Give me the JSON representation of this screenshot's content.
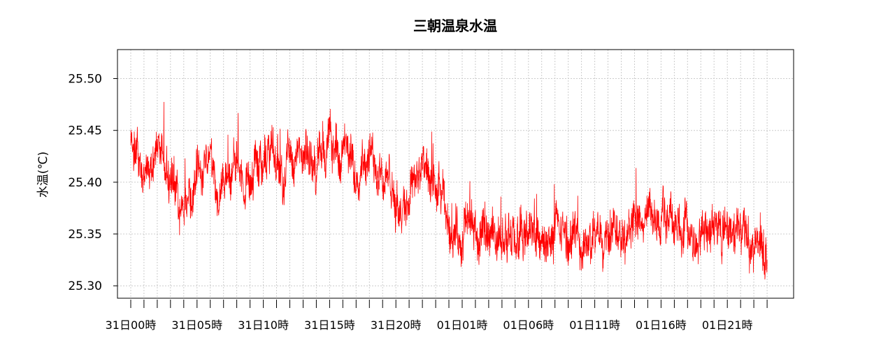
{
  "chart_data": {
    "type": "line",
    "title": "三朝温泉水温",
    "xlabel": "",
    "ylabel": "水温(℃)",
    "ylim": [
      25.288,
      25.528
    ],
    "y_ticks": [
      25.3,
      25.35,
      25.4,
      25.45,
      25.5
    ],
    "y_tick_labels": [
      "25.30",
      "25.35",
      "25.40",
      "25.45",
      "25.50"
    ],
    "x_range_hours": [
      -1.0,
      50.0
    ],
    "x_major_ticks": [
      {
        "hour": 0,
        "label": "31日00時"
      },
      {
        "hour": 5,
        "label": "31日05時"
      },
      {
        "hour": 10,
        "label": "31日10時"
      },
      {
        "hour": 15,
        "label": "31日15時"
      },
      {
        "hour": 20,
        "label": "31日20時"
      },
      {
        "hour": 25,
        "label": "01日01時"
      },
      {
        "hour": 30,
        "label": "01日06時"
      },
      {
        "hour": 35,
        "label": "01日11時"
      },
      {
        "hour": 40,
        "label": "01日16時"
      },
      {
        "hour": 45,
        "label": "01日21時"
      }
    ],
    "x_minor_tick_hours": [
      0,
      1,
      2,
      3,
      4,
      5,
      6,
      7,
      8,
      9,
      10,
      11,
      12,
      13,
      14,
      15,
      16,
      17,
      18,
      19,
      20,
      21,
      22,
      23,
      24,
      25,
      26,
      27,
      28,
      29,
      30,
      31,
      32,
      33,
      34,
      35,
      36,
      37,
      38,
      39,
      40,
      41,
      42,
      43,
      44,
      45,
      46,
      47,
      48
    ],
    "grid": true,
    "series": [
      {
        "color": "#ff0000",
        "x": [
          0.0,
          0.5,
          1.0,
          1.5,
          2.0,
          2.5,
          3.0,
          3.5,
          4.0,
          4.5,
          5.0,
          5.5,
          6.0,
          6.5,
          7.0,
          7.5,
          8.0,
          8.5,
          9.0,
          9.5,
          10.0,
          10.5,
          11.0,
          11.5,
          12.0,
          12.5,
          13.0,
          13.5,
          14.0,
          14.5,
          15.0,
          15.5,
          16.0,
          16.5,
          17.0,
          17.5,
          18.0,
          18.5,
          19.0,
          19.5,
          20.0,
          20.5,
          21.0,
          21.5,
          22.0,
          22.5,
          23.0,
          23.5,
          24.0,
          24.5,
          25.0,
          25.5,
          26.0,
          26.5,
          27.0,
          27.5,
          28.0,
          28.5,
          29.0,
          29.5,
          30.0,
          30.5,
          31.0,
          31.5,
          32.0,
          32.5,
          33.0,
          33.5,
          34.0,
          34.5,
          35.0,
          35.5,
          36.0,
          36.5,
          37.0,
          37.5,
          38.0,
          38.5,
          39.0,
          39.5,
          40.0,
          40.5,
          41.0,
          41.5,
          42.0,
          42.5,
          43.0,
          43.5,
          44.0,
          44.5,
          45.0,
          45.5,
          46.0,
          46.5,
          47.0,
          47.5,
          48.0
        ],
        "y": [
          25.44,
          25.43,
          25.4,
          25.42,
          25.43,
          25.42,
          25.41,
          25.38,
          25.37,
          25.4,
          25.41,
          25.42,
          25.44,
          25.39,
          25.4,
          25.41,
          25.41,
          25.4,
          25.41,
          25.42,
          25.42,
          25.43,
          25.42,
          25.41,
          25.43,
          25.42,
          25.42,
          25.42,
          25.42,
          25.43,
          25.44,
          25.43,
          25.43,
          25.42,
          25.41,
          25.43,
          25.42,
          25.42,
          25.41,
          25.4,
          25.37,
          25.38,
          25.39,
          25.41,
          25.41,
          25.4,
          25.39,
          25.38,
          25.36,
          25.35,
          25.35,
          25.36,
          25.35,
          25.34,
          25.35,
          25.35,
          25.35,
          25.34,
          25.34,
          25.34,
          25.35,
          25.35,
          25.34,
          25.34,
          25.35,
          25.35,
          25.34,
          25.35,
          25.34,
          25.34,
          25.34,
          25.35,
          25.36,
          25.36,
          25.36,
          25.36,
          25.36,
          25.36,
          25.37,
          25.36,
          25.36,
          25.37,
          25.37,
          25.36,
          25.35,
          25.34,
          25.35,
          25.36,
          25.36,
          25.35,
          25.35,
          25.35,
          25.35,
          25.35,
          25.34,
          25.34,
          25.33
        ],
        "noise_amplitude": 0.03
      }
    ]
  }
}
